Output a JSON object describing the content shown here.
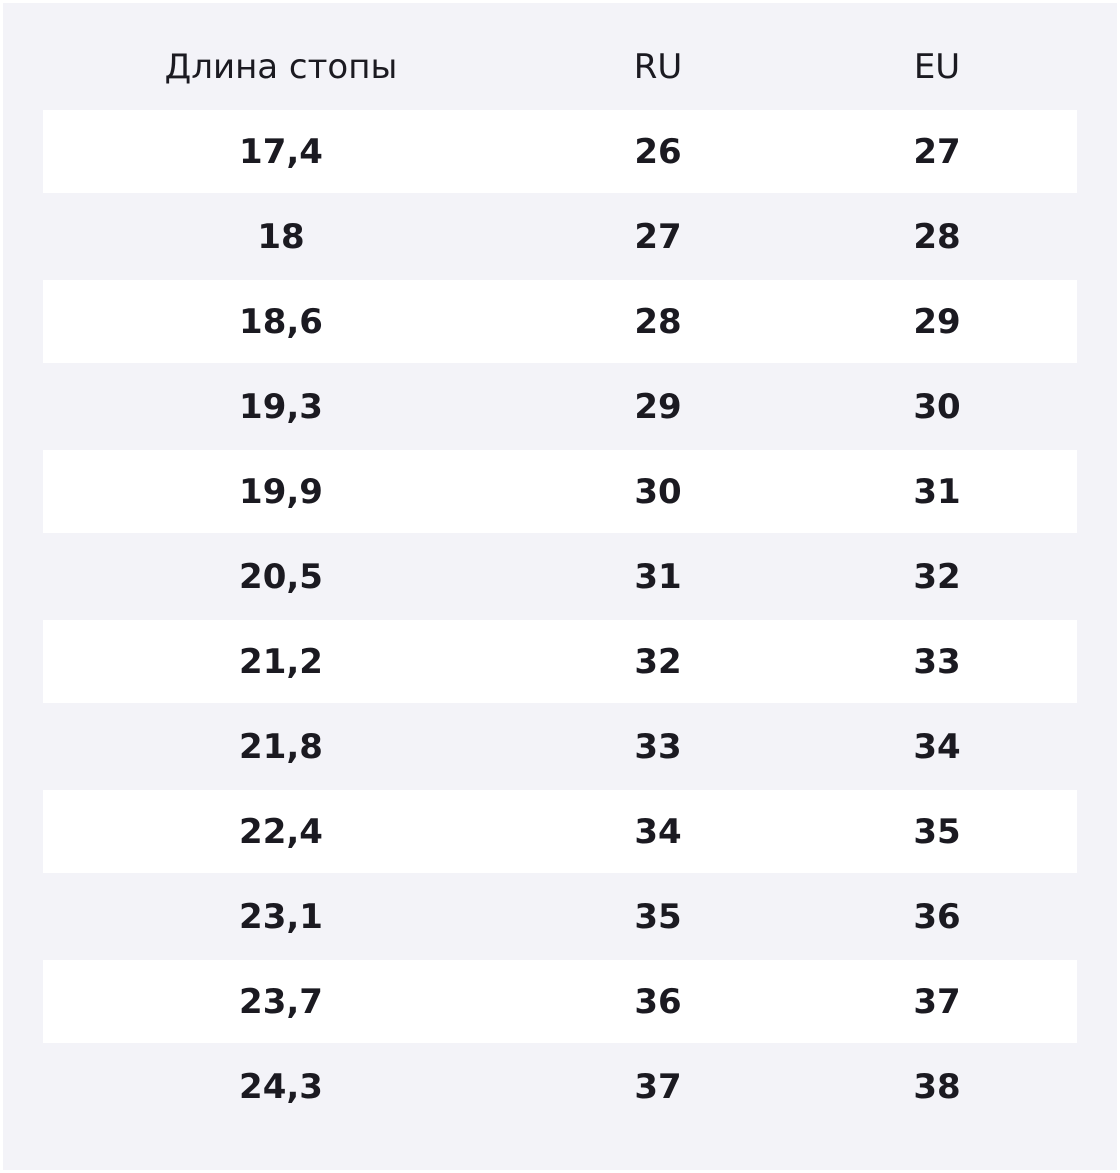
{
  "table": {
    "header": [
      "Длина стопы",
      "RU",
      "EU"
    ],
    "rows": [
      [
        "17,4",
        "26",
        "27"
      ],
      [
        "18",
        "27",
        "28"
      ],
      [
        "18,6",
        "28",
        "29"
      ],
      [
        "19,3",
        "29",
        "30"
      ],
      [
        "19,9",
        "30",
        "31"
      ],
      [
        "20,5",
        "31",
        "32"
      ],
      [
        "21,2",
        "32",
        "33"
      ],
      [
        "21,8",
        "33",
        "34"
      ],
      [
        "22,4",
        "34",
        "35"
      ],
      [
        "23,1",
        "35",
        "36"
      ],
      [
        "23,7",
        "36",
        "37"
      ],
      [
        "24,3",
        "37",
        "38"
      ]
    ]
  }
}
